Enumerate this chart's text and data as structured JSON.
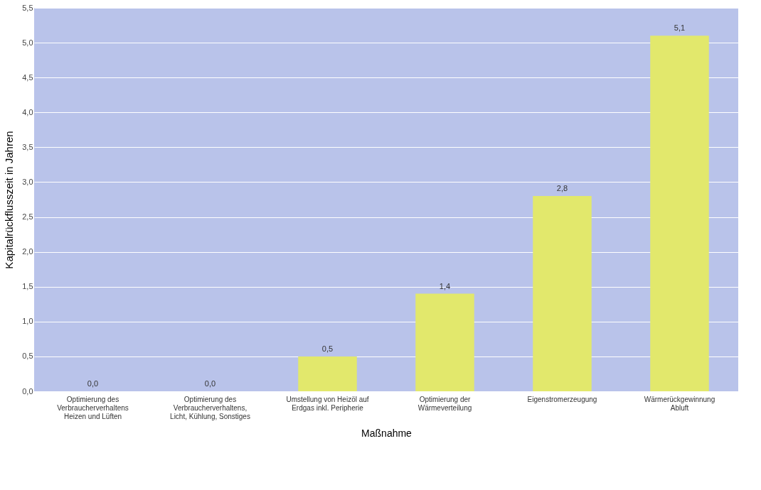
{
  "chart_data": {
    "type": "bar",
    "xlabel": "Maßnahme",
    "ylabel": "Kapitalrückflusszeit in Jahren",
    "categories": [
      "Optimierung des\nVerbraucherverhaltens\nHeizen und Lüften",
      "Optimierung des\nVerbraucherverhaltens,\nLicht, Kühlung, Sonstiges",
      "Umstellung von Heizöl auf\nErdgas inkl. Peripherie",
      "Optimierung der\nWärmeverteilung",
      "Eigenstromerzeugung",
      "Wärmerückgewinnung\nAbluft"
    ],
    "values": [
      0.0,
      0.0,
      0.5,
      1.4,
      2.8,
      5.1
    ],
    "value_labels": [
      "0,0",
      "0,0",
      "0,5",
      "1,4",
      "2,8",
      "5,1"
    ],
    "color": "#e2e86c",
    "ylim": [
      0,
      5.5
    ],
    "yticks": [
      {
        "value": 0,
        "label": "0,0"
      },
      {
        "value": 0.5,
        "label": "0,5"
      },
      {
        "value": 1,
        "label": "1,0"
      },
      {
        "value": 1.5,
        "label": "1,5"
      },
      {
        "value": 2,
        "label": "2,0"
      },
      {
        "value": 2.5,
        "label": "2,5"
      },
      {
        "value": 3,
        "label": "3,0"
      },
      {
        "value": 3.5,
        "label": "3,5"
      },
      {
        "value": 4,
        "label": "4,0"
      },
      {
        "value": 4.5,
        "label": "4,5"
      },
      {
        "value": 5,
        "label": "5,0"
      },
      {
        "value": 5.5,
        "label": "5,5"
      }
    ],
    "grid": "y"
  }
}
